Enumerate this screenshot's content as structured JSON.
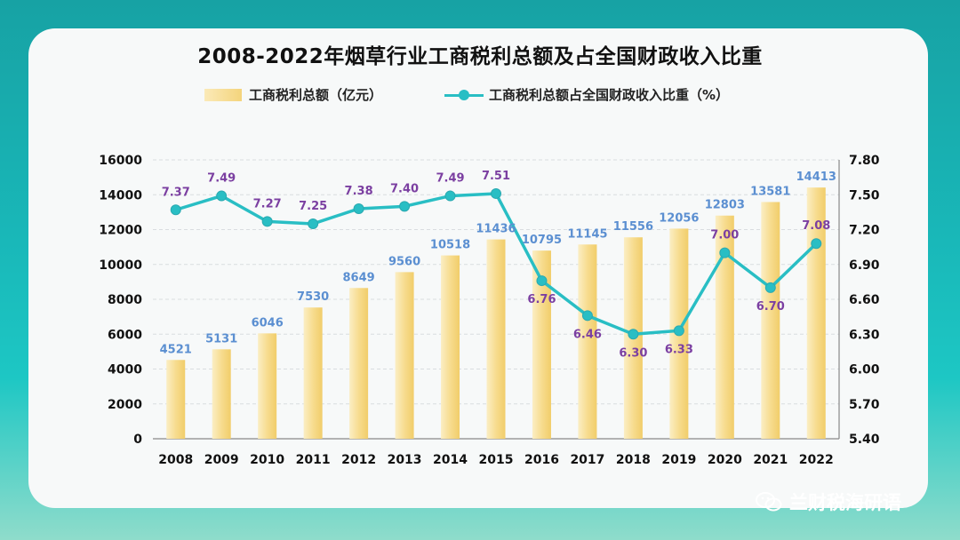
{
  "title": "2008-2022年烟草行业工商税利总额及占全国财政收入比重",
  "watermark": "兰财税海研语",
  "chart_data": {
    "type": "bar",
    "title": "2008-2022年烟草行业工商税利总额及占全国财政收入比重",
    "categories": [
      "2008",
      "2009",
      "2010",
      "2011",
      "2012",
      "2013",
      "2014",
      "2015",
      "2016",
      "2017",
      "2018",
      "2019",
      "2020",
      "2021",
      "2022"
    ],
    "series": [
      {
        "name": "工商税利总额（亿元）",
        "type": "bar",
        "axis": "left",
        "values": [
          4521,
          5131,
          6046,
          7530,
          8649,
          9560,
          10518,
          11436,
          10795,
          11145,
          11556,
          12056,
          12803,
          13581,
          14413
        ],
        "color": "#f4d47c"
      },
      {
        "name": "工商税利总额占全国财政收入比重（%）",
        "type": "line",
        "axis": "right",
        "values": [
          7.37,
          7.49,
          7.27,
          7.25,
          7.38,
          7.4,
          7.49,
          7.51,
          6.76,
          6.46,
          6.3,
          6.33,
          7.0,
          6.7,
          7.08
        ],
        "color": "#29bec4"
      }
    ],
    "y_left": {
      "min": 0,
      "max": 16000,
      "ticks": [
        "0",
        "2000",
        "4000",
        "6000",
        "8000",
        "10000",
        "12000",
        "14000",
        "16000"
      ]
    },
    "y_right": {
      "min": 5.4,
      "max": 7.8,
      "ticks": [
        "5.40",
        "5.70",
        "6.00",
        "6.30",
        "6.60",
        "6.90",
        "7.20",
        "7.50",
        "7.80"
      ]
    },
    "grid": true,
    "legend": "top",
    "bar_label_color": "#5b8fd1",
    "line_label_color": "#7b3fa1"
  }
}
